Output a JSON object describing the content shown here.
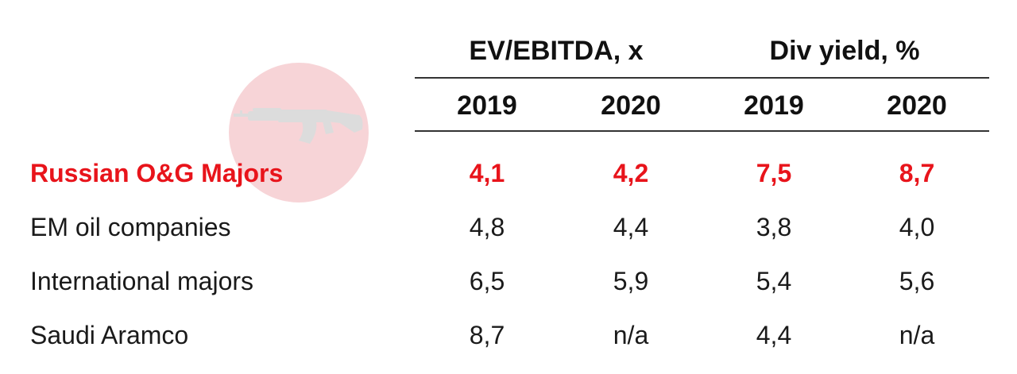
{
  "table": {
    "group_headers": [
      "EV/EBITDA, x",
      "Div yield, %"
    ],
    "years": [
      "2019",
      "2020",
      "2019",
      "2020"
    ],
    "rows": [
      {
        "label": "Russian O&G Majors",
        "values": [
          "4,1",
          "4,2",
          "7,5",
          "8,7"
        ],
        "highlight": true
      },
      {
        "label": "EM oil companies",
        "values": [
          "4,8",
          "4,4",
          "3,8",
          "4,0"
        ],
        "highlight": false
      },
      {
        "label": "International majors",
        "values": [
          "6,5",
          "5,9",
          "5,4",
          "5,6"
        ],
        "highlight": false
      },
      {
        "label": "Saudi Aramco",
        "values": [
          "8,7",
          "n/a",
          "4,4",
          "n/a"
        ],
        "highlight": false
      }
    ]
  },
  "colors": {
    "highlight": "#e8141b",
    "text": "#1a1a1a",
    "watermark_circle": "#f7d4d7",
    "watermark_rifle": "#dcdcdc"
  },
  "watermark": {
    "icon": "rifle-icon"
  }
}
